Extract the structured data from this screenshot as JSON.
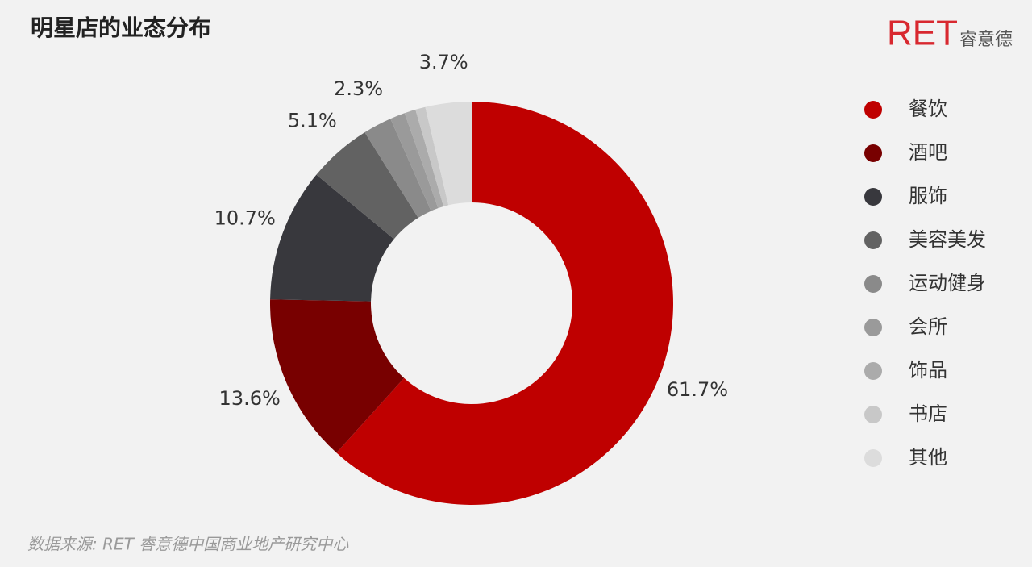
{
  "chart_data": {
    "type": "donut",
    "title": "明星店的业态分布",
    "brand": "RET",
    "brand_sub": "睿意德",
    "source": "数据来源: RET 睿意德中国商业地产研究中心",
    "categories": [
      "餐饮",
      "酒吧",
      "服饰",
      "美容美发",
      "运动健身",
      "会所",
      "饰品",
      "书店",
      "其他"
    ],
    "values": [
      61.7,
      13.6,
      10.7,
      5.1,
      2.3,
      1.2,
      0.9,
      0.8,
      3.7
    ],
    "value_labels": [
      "61.7%",
      "13.6%",
      "10.7%",
      "5.1%",
      "2.3%",
      null,
      null,
      null,
      "3.7%"
    ],
    "colors": [
      "#bf0000",
      "#780000",
      "#38383d",
      "#626262",
      "#8a8a8a",
      "#9a9a9a",
      "#ababab",
      "#c8c8c8",
      "#dcdcdc"
    ]
  }
}
